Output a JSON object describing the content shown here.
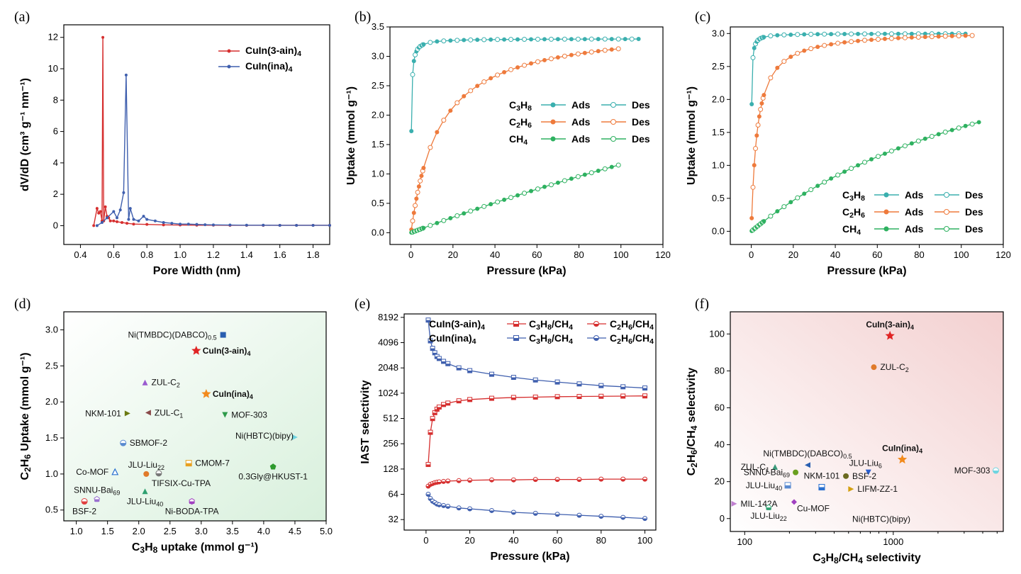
{
  "chart_data": [
    {
      "panel": "(a)",
      "type": "line",
      "xlabel": "Pore Width (nm)",
      "ylabel": "dV/dD (cm³ g⁻¹ nm⁻¹)",
      "xlim": [
        0.3,
        1.9
      ],
      "ylim": [
        -1.2,
        12.8
      ],
      "xticks": [
        0.4,
        0.6,
        0.8,
        1.0,
        1.2,
        1.4,
        1.6,
        1.8
      ],
      "yticks": [
        0,
        2,
        4,
        6,
        8,
        10,
        12
      ],
      "legend_position": "top-right",
      "series": [
        {
          "name": "CuIn(3-ain)4",
          "color": "#d62f2f",
          "x": [
            0.48,
            0.5,
            0.51,
            0.52,
            0.53,
            0.535,
            0.54,
            0.55,
            0.56,
            0.57,
            0.58,
            0.6,
            0.62,
            0.65,
            0.68,
            0.72,
            0.8,
            0.9,
            1.0,
            1.1,
            1.2,
            1.3,
            1.4,
            1.5,
            1.6,
            1.7,
            1.8,
            1.9
          ],
          "y": [
            0,
            1.1,
            0.8,
            0.9,
            0.3,
            12,
            0.3,
            1.2,
            0.6,
            0.5,
            0.3,
            0.3,
            0.25,
            0.2,
            0.15,
            0.1,
            0.08,
            0.05,
            0.04,
            0.03,
            0.03,
            0.02,
            0.02,
            0.02,
            0.02,
            0.02,
            0.02,
            0.02
          ]
        },
        {
          "name": "CuIn(ina)4",
          "color": "#3f5fae",
          "x": [
            0.5,
            0.53,
            0.56,
            0.6,
            0.62,
            0.64,
            0.66,
            0.675,
            0.69,
            0.7,
            0.72,
            0.75,
            0.78,
            0.8,
            0.85,
            0.9,
            0.95,
            1.0,
            1.05,
            1.1,
            1.15,
            1.2,
            1.3,
            1.4,
            1.5,
            1.6,
            1.7,
            1.8,
            1.9
          ],
          "y": [
            0,
            0.2,
            0.5,
            0.9,
            0.5,
            1.0,
            2.1,
            9.6,
            0.4,
            1.1,
            0.4,
            0.3,
            0.6,
            0.4,
            0.3,
            0.2,
            0.15,
            0.1,
            0.1,
            0.08,
            0.06,
            0.05,
            0.04,
            0.03,
            0.03,
            0.02,
            0.02,
            0.02,
            0.02
          ]
        }
      ]
    },
    {
      "panel": "(b)",
      "type": "line",
      "xlabel": "Pressure (kPa)",
      "ylabel": "Uptake (mmol g⁻¹)",
      "xlim": [
        -10,
        120
      ],
      "ylim": [
        -0.2,
        3.5
      ],
      "xticks": [
        0,
        20,
        40,
        60,
        80,
        100,
        120
      ],
      "yticks": [
        0.0,
        0.5,
        1.0,
        1.5,
        2.0,
        2.5,
        3.0,
        3.5
      ],
      "legend_position": "center-right",
      "legend": [
        {
          "gas": "C3H8",
          "ads": "Ads",
          "des": "Des",
          "color": "#3aafae"
        },
        {
          "gas": "C2H6",
          "ads": "Ads",
          "des": "Des",
          "color": "#ee7a3c"
        },
        {
          "gas": "CH4",
          "ads": "Ads",
          "des": "Des",
          "color": "#2eb160"
        }
      ],
      "series": [
        {
          "name": "C3H8",
          "color": "#3aafae",
          "model": "langmuir",
          "qmax": 3.3,
          "b": 5.5,
          "xmax": 109
        },
        {
          "name": "C2H6",
          "color": "#ee7a3c",
          "model": "langmuir",
          "qmax": 3.55,
          "b": 0.075,
          "xmax": 102
        },
        {
          "name": "CH4",
          "color": "#2eb160",
          "model": "langmuir",
          "qmax": 8.0,
          "b": 0.0017,
          "xmax": 101
        }
      ]
    },
    {
      "panel": "(c)",
      "type": "line",
      "xlabel": "Pressure (kPa)",
      "ylabel": "Uptake (mmol g⁻¹)",
      "xlim": [
        -10,
        120
      ],
      "ylim": [
        -0.2,
        3.1
      ],
      "xticks": [
        0,
        20,
        40,
        60,
        80,
        100,
        120
      ],
      "yticks": [
        0.0,
        0.5,
        1.0,
        1.5,
        2.0,
        2.5,
        3.0
      ],
      "legend_position": "bottom-right",
      "legend": [
        {
          "gas": "C3H8",
          "ads": "Ads",
          "des": "Des",
          "color": "#3aafae"
        },
        {
          "gas": "C2H6",
          "ads": "Ads",
          "des": "Des",
          "color": "#ee7a3c"
        },
        {
          "gas": "CH4",
          "ads": "Ads",
          "des": "Des",
          "color": "#2eb160"
        }
      ],
      "series": [
        {
          "name": "C3H8",
          "color": "#3aafae",
          "model": "langmuir",
          "qmax": 3.0,
          "b": 9.0,
          "xmax": 105
        },
        {
          "name": "C2H6",
          "color": "#ee7a3c",
          "model": "langmuir",
          "qmax": 3.05,
          "b": 0.35,
          "xmax": 106
        },
        {
          "name": "CH4",
          "color": "#2eb160",
          "model": "langmuir",
          "qmax": 3.9,
          "b": 0.0068,
          "xmax": 109
        }
      ]
    },
    {
      "panel": "(d)",
      "type": "scatter",
      "xlabel": "C3H8 uptake (mmol g⁻¹)",
      "ylabel": "C2H6 Uptake (mmol g⁻¹)",
      "xlim": [
        0.8,
        5.0
      ],
      "ylim": [
        0.35,
        3.25
      ],
      "xticks": [
        1.0,
        1.5,
        2.0,
        2.5,
        3.0,
        3.5,
        4.0,
        4.5,
        5.0
      ],
      "yticks": [
        0.5,
        1.0,
        1.5,
        2.0,
        2.5,
        3.0
      ],
      "points": [
        {
          "label": "Ni(TMBDC)(DABCO)0.5",
          "x": 3.35,
          "y": 2.93,
          "color": "#2a5fb0",
          "shape": "square",
          "lbl": "left"
        },
        {
          "label": "CuIn(3-ain)4",
          "x": 2.92,
          "y": 2.71,
          "color": "#e02424",
          "shape": "star",
          "lbl": "right",
          "hl": true
        },
        {
          "label": "ZUL-C2",
          "x": 2.1,
          "y": 2.27,
          "color": "#9a5bd0",
          "shape": "triangle-up",
          "lbl": "right"
        },
        {
          "label": "CuIn(ina)4",
          "x": 3.08,
          "y": 2.11,
          "color": "#f28a1c",
          "shape": "star",
          "lbl": "right",
          "hl": true
        },
        {
          "label": "NKM-101",
          "x": 1.82,
          "y": 1.84,
          "color": "#6b7a10",
          "shape": "triangle-right",
          "lbl": "left"
        },
        {
          "label": "ZUL-C1",
          "x": 2.15,
          "y": 1.85,
          "color": "#8a4a4a",
          "shape": "triangle-left",
          "lbl": "right"
        },
        {
          "label": "MOF-303",
          "x": 3.38,
          "y": 1.82,
          "color": "#2e9a4a",
          "shape": "triangle-down",
          "lbl": "right"
        },
        {
          "label": "Ni(HBTC)(bipy)",
          "x": 4.5,
          "y": 1.51,
          "color": "#6fd4e0",
          "shape": "triangle-right",
          "lbl": "left-up"
        },
        {
          "label": "SBMOF-2",
          "x": 1.75,
          "y": 1.43,
          "color": "#5a8ad0",
          "shape": "half-circle",
          "lbl": "right"
        },
        {
          "label": "CMOM-7",
          "x": 2.8,
          "y": 1.15,
          "color": "#e8a020",
          "shape": "half-square",
          "lbl": "right"
        },
        {
          "label": "0.3Gly@HKUST-1",
          "x": 4.15,
          "y": 1.1,
          "color": "#2e9a2e",
          "shape": "pentagon",
          "lbl": "below"
        },
        {
          "label": "Co-MOF",
          "x": 1.62,
          "y": 1.03,
          "color": "#2a70d0",
          "shape": "triangle-up-open",
          "lbl": "left"
        },
        {
          "label": "JLU-Liu22",
          "x": 2.12,
          "y": 1.0,
          "color": "#e07a2a",
          "shape": "circle",
          "lbl": "above"
        },
        {
          "label": "TIFSIX-Cu-TPA",
          "x": 2.32,
          "y": 1.01,
          "color": "#777777",
          "shape": "half-circle",
          "lbl": "below-right"
        },
        {
          "label": "SNNU-Bai69",
          "x": 1.33,
          "y": 0.65,
          "color": "#9a70d0",
          "shape": "pentagon-half",
          "lbl": "above"
        },
        {
          "label": "BSF-2",
          "x": 1.13,
          "y": 0.62,
          "color": "#e04040",
          "shape": "half-circle",
          "lbl": "below"
        },
        {
          "label": "JLU-Liu40",
          "x": 2.1,
          "y": 0.76,
          "color": "#2ea070",
          "shape": "triangle-up",
          "lbl": "below"
        },
        {
          "label": "Ni-BODA-TPA",
          "x": 2.85,
          "y": 0.62,
          "color": "#a040c0",
          "shape": "half-hex",
          "lbl": "below"
        }
      ]
    },
    {
      "panel": "(e)",
      "type": "line",
      "xlabel": "Pressure (kPa)",
      "ylabel": "IAST selectivity",
      "scale_y": "log2",
      "xlim": [
        -10,
        105
      ],
      "ylim": [
        24,
        9000
      ],
      "xticks": [
        0,
        20,
        40,
        60,
        80,
        100
      ],
      "yticks": [
        32,
        64,
        128,
        256,
        512,
        1024,
        2048,
        4096,
        8192
      ],
      "legend": [
        {
          "material": "CuIn(3-ain)4",
          "color": "#d62f2f",
          "pairs": [
            "C3H8/CH4",
            "C2H6/CH4"
          ]
        },
        {
          "material": "CuIn(ina)4",
          "color": "#3f5fae",
          "pairs": [
            "C3H8/CH4",
            "C2H6/CH4"
          ]
        }
      ],
      "series": [
        {
          "name": "CuIn(3-ain)4 C3H8/CH4",
          "color": "#d62f2f",
          "marker": "half-square",
          "x": [
            1,
            2,
            3,
            4,
            5,
            6,
            8,
            10,
            15,
            20,
            30,
            40,
            50,
            60,
            70,
            80,
            90,
            100
          ],
          "y": [
            145,
            350,
            510,
            600,
            660,
            700,
            750,
            780,
            830,
            860,
            890,
            910,
            920,
            930,
            935,
            940,
            945,
            950
          ]
        },
        {
          "name": "CuIn(3-ain)4 C2H6/CH4",
          "color": "#d62f2f",
          "marker": "half-circle",
          "x": [
            1,
            2,
            3,
            4,
            5,
            6,
            8,
            10,
            15,
            20,
            30,
            40,
            50,
            60,
            70,
            80,
            90,
            100
          ],
          "y": [
            80,
            84,
            86,
            88,
            89,
            90,
            91,
            92,
            93,
            94,
            95,
            95,
            96,
            96,
            96,
            97,
            97,
            97
          ]
        },
        {
          "name": "CuIn(ina)4 C3H8/CH4",
          "color": "#3f5fae",
          "marker": "half-square",
          "x": [
            1,
            2,
            3,
            4,
            5,
            6,
            8,
            10,
            15,
            20,
            30,
            40,
            50,
            60,
            70,
            80,
            90,
            100
          ],
          "y": [
            7600,
            4300,
            3500,
            3100,
            2800,
            2650,
            2450,
            2300,
            2050,
            1900,
            1720,
            1580,
            1470,
            1390,
            1320,
            1260,
            1220,
            1180
          ]
        },
        {
          "name": "CuIn(ina)4 C2H6/CH4",
          "color": "#3f5fae",
          "marker": "half-circle",
          "x": [
            1,
            2,
            3,
            4,
            5,
            6,
            8,
            10,
            15,
            20,
            30,
            40,
            50,
            60,
            70,
            80,
            90,
            100
          ],
          "y": [
            64,
            57,
            53,
            51,
            49,
            48,
            47,
            46,
            44,
            43,
            41,
            39,
            38,
            37,
            36,
            35,
            34,
            33
          ]
        }
      ]
    },
    {
      "panel": "(f)",
      "type": "scatter",
      "scale_x": "log",
      "xlabel": "C3H8/CH4 selectivity",
      "ylabel": "C2H6/CH4 selectivity",
      "xlim": [
        80,
        5500
      ],
      "ylim": [
        -7,
        112
      ],
      "xticks": [
        100,
        1000
      ],
      "yticks": [
        0,
        20,
        40,
        60,
        80,
        100
      ],
      "points": [
        {
          "label": "CuIn(3-ain)4",
          "x": 950,
          "y": 99,
          "color": "#e02424",
          "shape": "star",
          "lbl": "above",
          "hl": true
        },
        {
          "label": "ZUL-C2",
          "x": 740,
          "y": 82,
          "color": "#e07a2a",
          "shape": "circle",
          "lbl": "right"
        },
        {
          "label": "CuIn(ina)4",
          "x": 1150,
          "y": 32,
          "color": "#f28a1c",
          "shape": "star",
          "lbl": "above",
          "hl": true
        },
        {
          "label": "MOF-303",
          "x": 4900,
          "y": 26,
          "color": "#6fd4e0",
          "shape": "half-circle",
          "lbl": "left"
        },
        {
          "label": "Ni(TMBDC)(DABCO)0.5",
          "x": 265,
          "y": 29,
          "color": "#2a5fb0",
          "shape": "triangle-left",
          "lbl": "above"
        },
        {
          "label": "ZUL-C1",
          "x": 160,
          "y": 28,
          "color": "#3a9a7a",
          "shape": "triangle-up",
          "lbl": "left"
        },
        {
          "label": "JLU-Liu6",
          "x": 680,
          "y": 25,
          "color": "#2a5fd0",
          "shape": "triangle-down",
          "lbl": "above-left"
        },
        {
          "label": "SNNU-Bai69",
          "x": 220,
          "y": 25,
          "color": "#6aa020",
          "shape": "circle",
          "lbl": "left"
        },
        {
          "label": "BSF-2",
          "x": 480,
          "y": 23,
          "color": "#6b6a20",
          "shape": "circle",
          "lbl": "right"
        },
        {
          "label": "NKM-101",
          "x": 330,
          "y": 17,
          "color": "#2a70d0",
          "shape": "half-square",
          "lbl": "above"
        },
        {
          "label": "JLU-Liu40",
          "x": 195,
          "y": 18,
          "color": "#5a8ad0",
          "shape": "half-square",
          "lbl": "left"
        },
        {
          "label": "LIFM-ZZ-1",
          "x": 520,
          "y": 16,
          "color": "#d4a010",
          "shape": "triangle-right",
          "lbl": "right"
        },
        {
          "label": "MIL-142A",
          "x": 85,
          "y": 8,
          "color": "#c080d0",
          "shape": "triangle-right",
          "lbl": "right"
        },
        {
          "label": "Cu-MOF",
          "x": 215,
          "y": 9,
          "color": "#a040c0",
          "shape": "diamond",
          "lbl": "below-right"
        },
        {
          "label": "JLU-Liu22",
          "x": 145,
          "y": 6,
          "color": "#2ea070",
          "shape": "pentagon-half",
          "lbl": "below"
        },
        {
          "label": "Ni(HBTC)(bipy)",
          "x": 480,
          "y": 5,
          "color": "#4a8ad0",
          "shape": "none",
          "lbl": "right"
        }
      ]
    }
  ]
}
